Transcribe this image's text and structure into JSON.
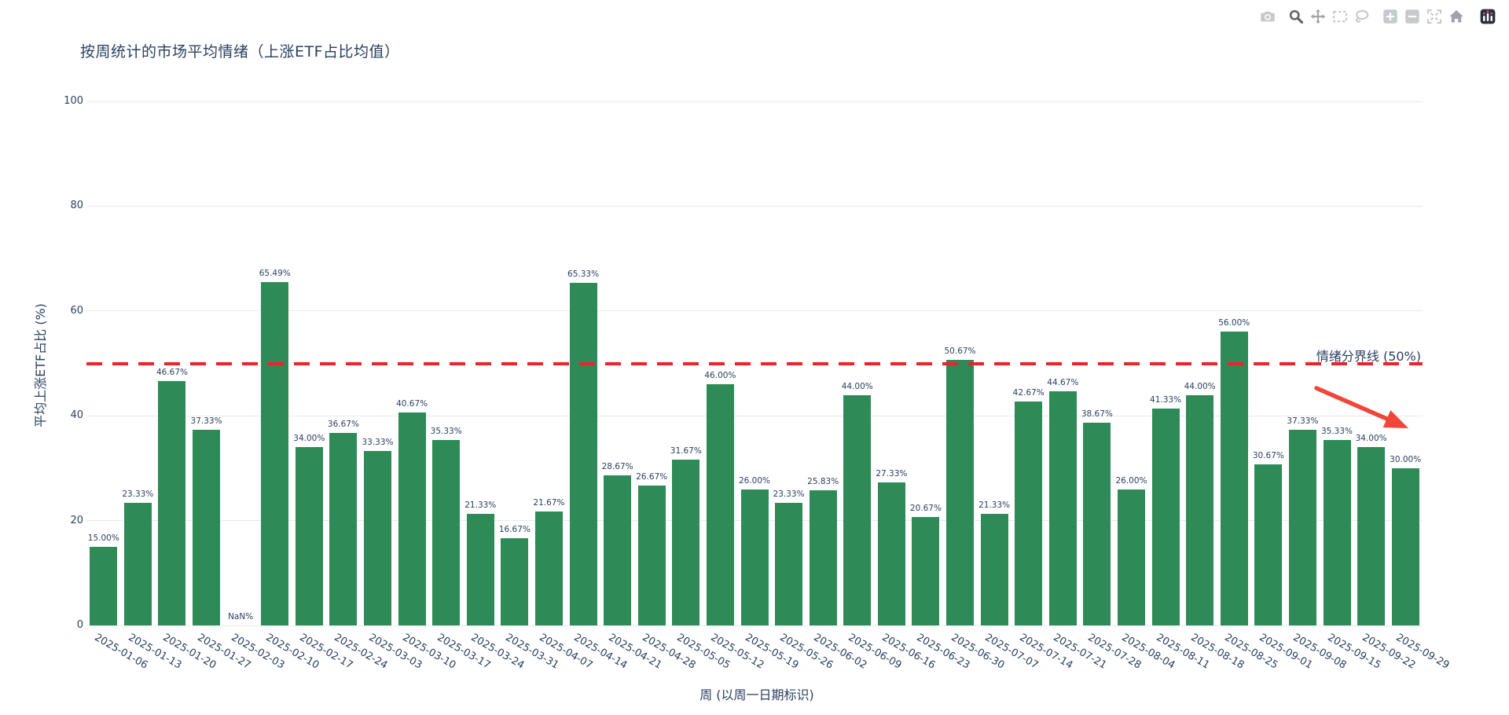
{
  "chart_data": {
    "type": "bar",
    "title": "按周统计的市场平均情绪（上涨ETF占比均值）",
    "xlabel": "周 (以周一日期标识)",
    "ylabel": "平均上涨ETF占比 (%)",
    "ylim": [
      0,
      100
    ],
    "yticks": [
      0,
      20,
      40,
      60,
      80,
      100
    ],
    "grid": true,
    "bar_color": "#2e8b57",
    "text_color": "#2a3f5f",
    "categories": [
      "2025-01-06",
      "2025-01-13",
      "2025-01-20",
      "2025-01-27",
      "2025-02-03",
      "2025-02-10",
      "2025-02-17",
      "2025-02-24",
      "2025-03-03",
      "2025-03-10",
      "2025-03-17",
      "2025-03-24",
      "2025-03-31",
      "2025-04-07",
      "2025-04-14",
      "2025-04-21",
      "2025-04-28",
      "2025-05-05",
      "2025-05-12",
      "2025-05-19",
      "2025-05-26",
      "2025-06-02",
      "2025-06-09",
      "2025-06-16",
      "2025-06-23",
      "2025-06-30",
      "2025-07-07",
      "2025-07-14",
      "2025-07-21",
      "2025-07-28",
      "2025-08-04",
      "2025-08-11",
      "2025-08-18",
      "2025-08-25",
      "2025-09-01",
      "2025-09-08",
      "2025-09-15",
      "2025-09-22",
      "2025-09-29"
    ],
    "values": [
      15,
      23.33,
      46.67,
      37.33,
      null,
      65.49,
      34,
      36.67,
      33.33,
      40.67,
      35.33,
      21.33,
      16.67,
      21.67,
      65.33,
      28.67,
      26.67,
      31.67,
      46,
      26,
      23.33,
      25.83,
      44,
      27.33,
      20.67,
      50.67,
      21.33,
      42.67,
      44.67,
      38.67,
      26,
      41.33,
      44,
      56,
      30.67,
      37.33,
      35.33,
      34,
      30
    ],
    "bar_labels": [
      "15.00%",
      "23.33%",
      "46.67%",
      "37.33%",
      "NaN%",
      "65.49%",
      "34.00%",
      "36.67%",
      "33.33%",
      "40.67%",
      "35.33%",
      "21.33%",
      "16.67%",
      "21.67%",
      "65.33%",
      "28.67%",
      "26.67%",
      "31.67%",
      "46.00%",
      "26.00%",
      "23.33%",
      "25.83%",
      "44.00%",
      "27.33%",
      "20.67%",
      "50.67%",
      "21.33%",
      "42.67%",
      "44.67%",
      "38.67%",
      "26.00%",
      "41.33%",
      "44.00%",
      "56.00%",
      "30.67%",
      "37.33%",
      "35.33%",
      "34.00%",
      "30.00%"
    ],
    "threshold": {
      "value": 50,
      "label": "情绪分界线 (50%)",
      "color": "#e8262a"
    },
    "arrow_annotation": {
      "color": "#f2453a"
    }
  },
  "modebar": {
    "buttons": [
      {
        "icon": "camera-icon",
        "state": "dim"
      },
      {
        "icon": "zoom-icon",
        "state": "active"
      },
      {
        "icon": "pan-icon",
        "state": "default"
      },
      {
        "icon": "box-select-icon",
        "state": "dim"
      },
      {
        "icon": "lasso-select-icon",
        "state": "dim"
      },
      {
        "icon": "zoom-in-icon",
        "state": "dim"
      },
      {
        "icon": "zoom-out-icon",
        "state": "dim"
      },
      {
        "icon": "autoscale-icon",
        "state": "dim"
      },
      {
        "icon": "home-icon",
        "state": "default"
      },
      {
        "icon": "plotly-logo-icon",
        "state": "logo"
      }
    ]
  }
}
